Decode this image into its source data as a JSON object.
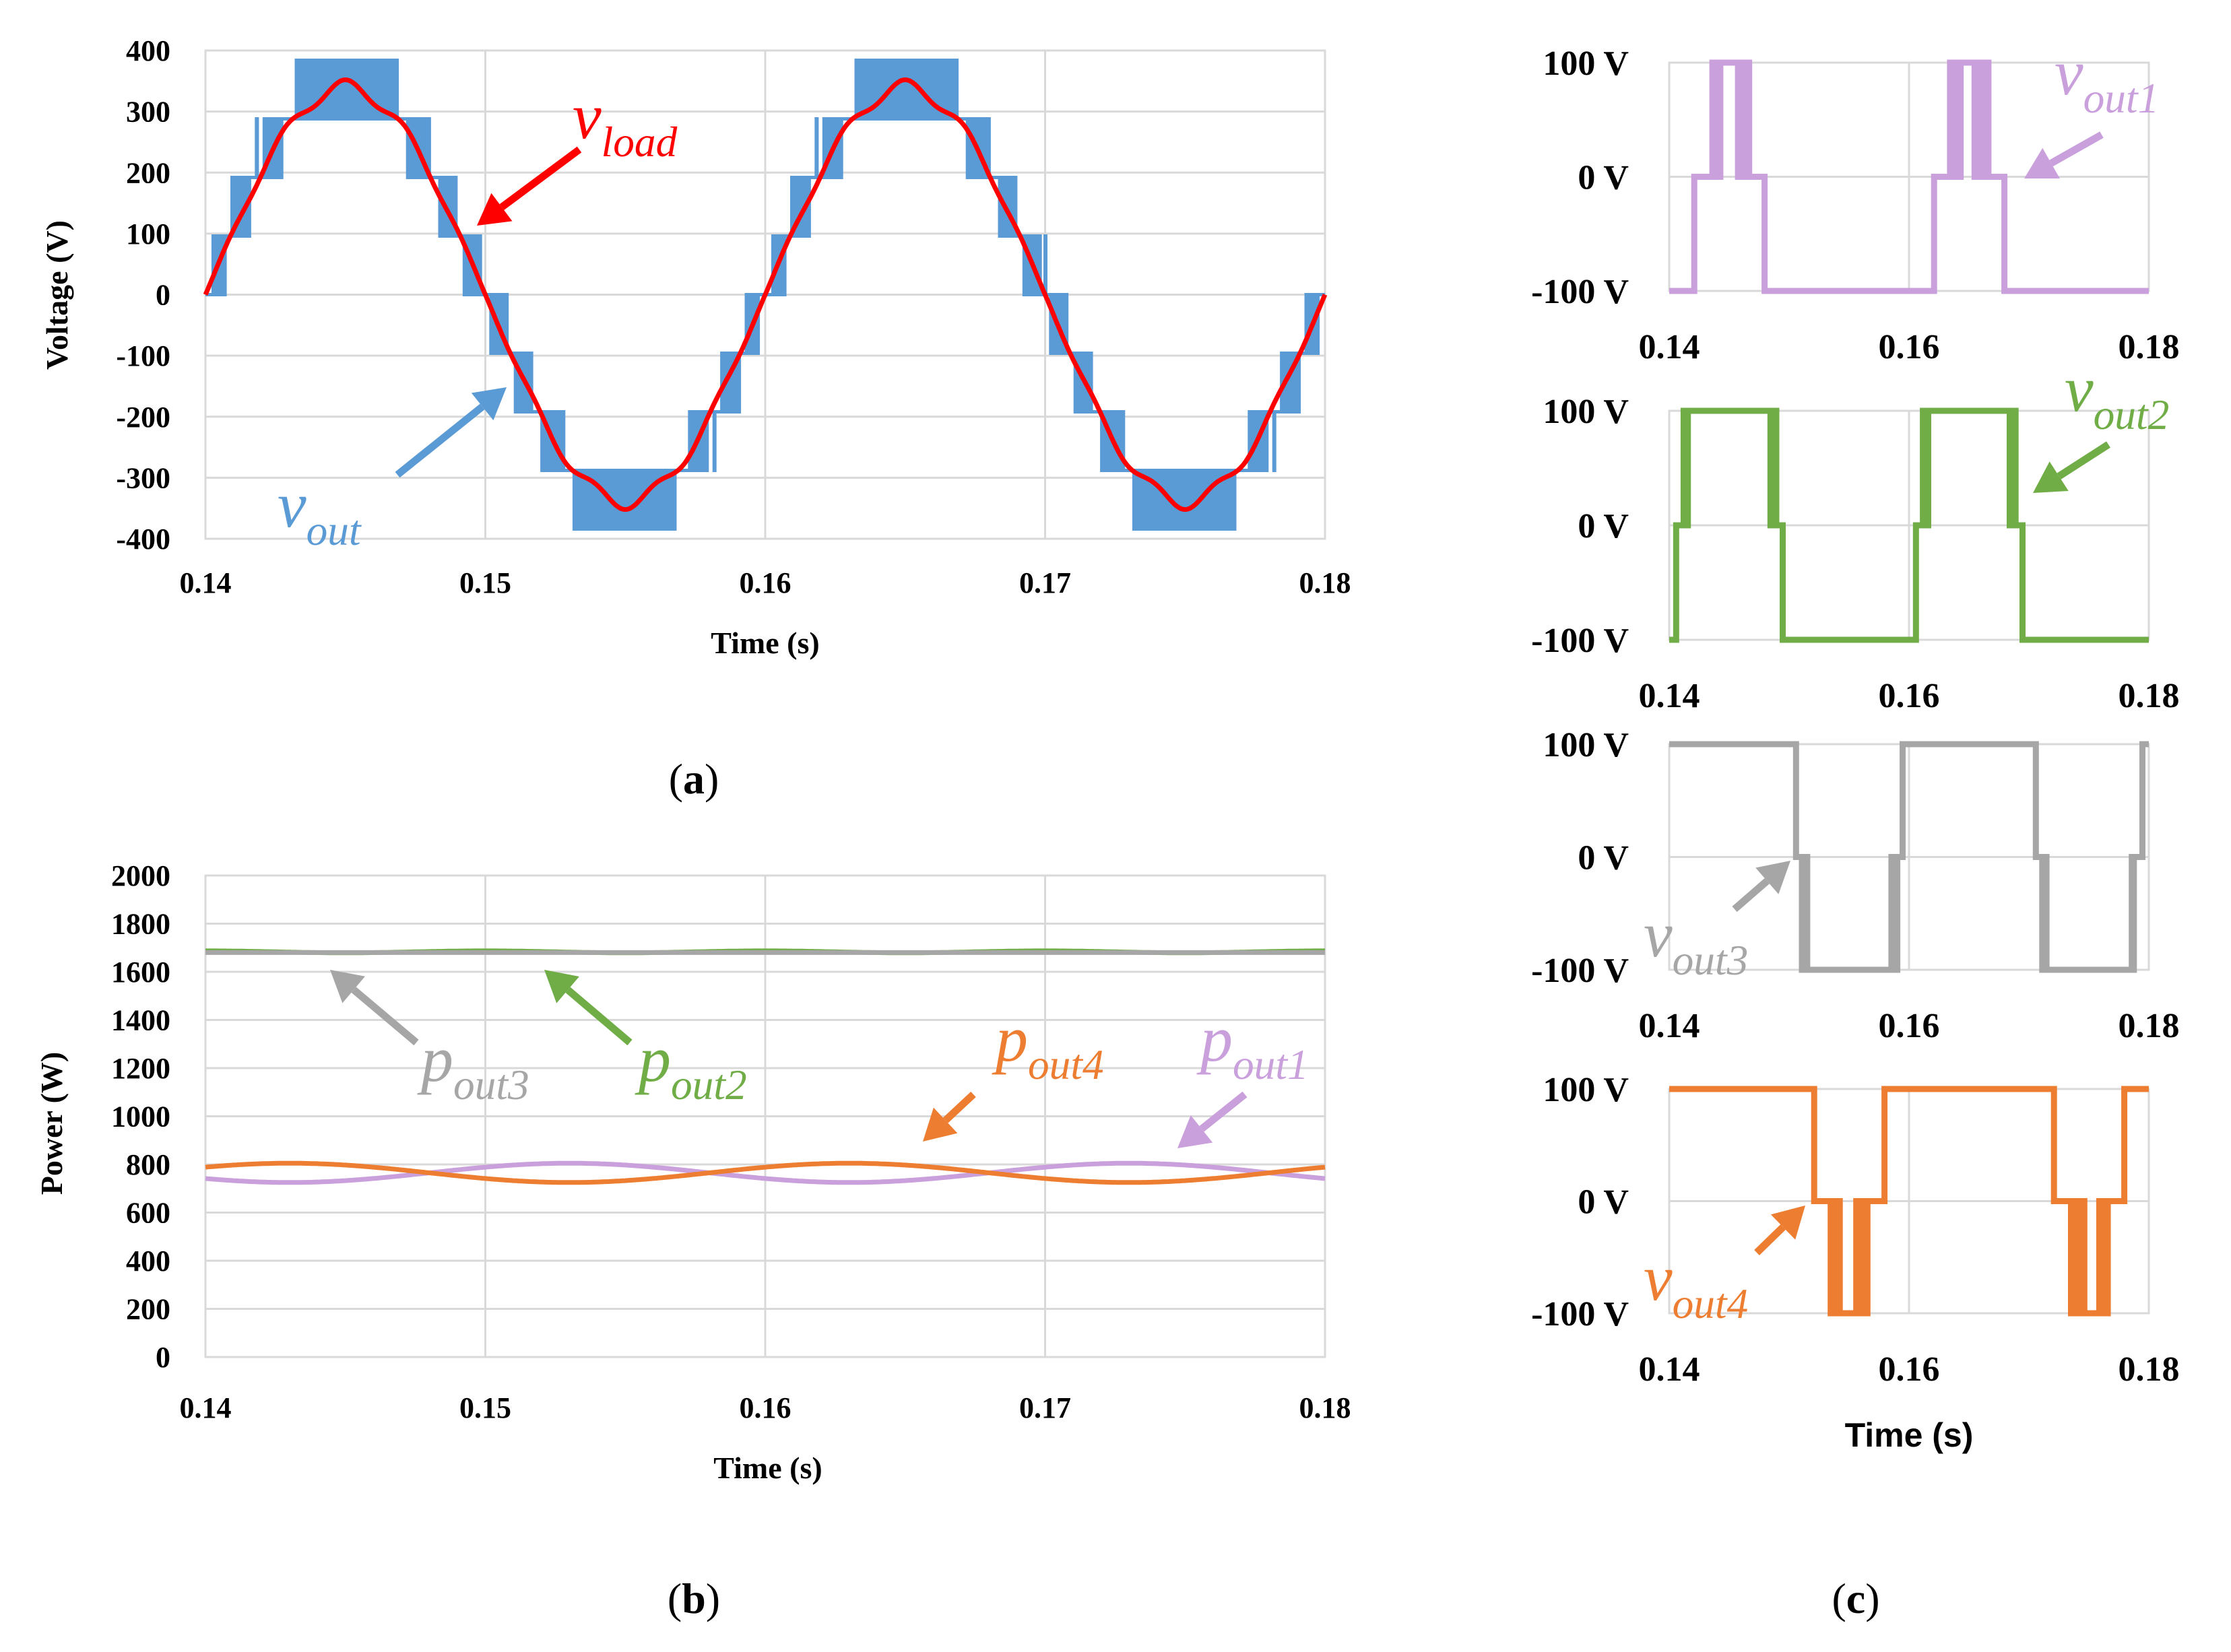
{
  "colors": {
    "vout": "#5b9bd5",
    "vload": "#ff0000",
    "pout1": "#c9a0dc",
    "pout2": "#70ad47",
    "pout3": "#a6a6a6",
    "pout4": "#ed7d31",
    "grid": "#d9d9d9"
  },
  "captions": {
    "a": "a",
    "b": "b",
    "c": "c"
  },
  "chart_data": [
    {
      "id": "a",
      "type": "line",
      "title": "",
      "xlabel": "Time (s)",
      "ylabel": "Voltage (V)",
      "xlim": [
        0.14,
        0.18
      ],
      "ylim": [
        -400,
        400
      ],
      "x_ticks": [
        "0.14",
        "0.15",
        "0.16",
        "0.17",
        "0.18"
      ],
      "y_ticks": [
        "400",
        "300",
        "200",
        "100",
        "0",
        "-100",
        "-200",
        "-300",
        "-400"
      ],
      "series": [
        {
          "name": "v_out",
          "label_main": "v",
          "label_sub": "out",
          "description": "9-level staircase with PWM between adjacent levels (step 96 V, peak 384 V)",
          "levels": [
            -384,
            -288,
            -192,
            -96,
            0,
            96,
            192,
            288,
            384
          ]
        },
        {
          "name": "v_load",
          "label_main": "v",
          "label_sub": "load",
          "description": "filtered sinusoid, peak approx 340 V, period 0.02 s",
          "amplitude": 340,
          "period": 0.02
        }
      ]
    },
    {
      "id": "b",
      "type": "line",
      "title": "",
      "xlabel": "Time (s)",
      "ylabel": "Power (W)",
      "xlim": [
        0.14,
        0.18
      ],
      "ylim": [
        0,
        2000
      ],
      "x_ticks": [
        "0.14",
        "0.15",
        "0.16",
        "0.17",
        "0.18"
      ],
      "y_ticks": [
        "2000",
        "1800",
        "1600",
        "1400",
        "1200",
        "1000",
        "800",
        "600",
        "400",
        "200",
        "0"
      ],
      "series": [
        {
          "name": "p_out1",
          "label_main": "p",
          "label_sub": "out1",
          "mean": 765,
          "amplitude": 40,
          "period": 0.02,
          "phase": "peak near 0.153 s"
        },
        {
          "name": "p_out2",
          "label_main": "p",
          "label_sub": "out2",
          "mean": 1683,
          "amplitude": 4,
          "period": 0.01
        },
        {
          "name": "p_out3",
          "label_main": "p",
          "label_sub": "out3",
          "mean": 1680,
          "amplitude": 0,
          "period": 0.01
        },
        {
          "name": "p_out4",
          "label_main": "p",
          "label_sub": "out4",
          "mean": 765,
          "amplitude": 40,
          "period": 0.02,
          "phase": "peak near 0.143 s"
        }
      ]
    },
    {
      "id": "c",
      "type": "line",
      "title": "",
      "xlabel": "Time (s)",
      "ylabel": "",
      "xlim": [
        0.14,
        0.18
      ],
      "ylim": [
        -100,
        100
      ],
      "x_ticks": [
        "0.14",
        "0.16",
        "0.18"
      ],
      "y_ticks": [
        "100 V",
        "0 V",
        "-100 V"
      ],
      "series": [
        {
          "name": "v_out1",
          "label_main": "v",
          "label_sub": "out1",
          "levels": [
            -100,
            0,
            100
          ]
        },
        {
          "name": "v_out2",
          "label_main": "v",
          "label_sub": "out2",
          "levels": [
            -100,
            0,
            100
          ]
        },
        {
          "name": "v_out3",
          "label_main": "v",
          "label_sub": "out3",
          "levels": [
            -100,
            0,
            100
          ]
        },
        {
          "name": "v_out4",
          "label_main": "v",
          "label_sub": "out4",
          "levels": [
            -100,
            0,
            100
          ]
        }
      ]
    }
  ]
}
